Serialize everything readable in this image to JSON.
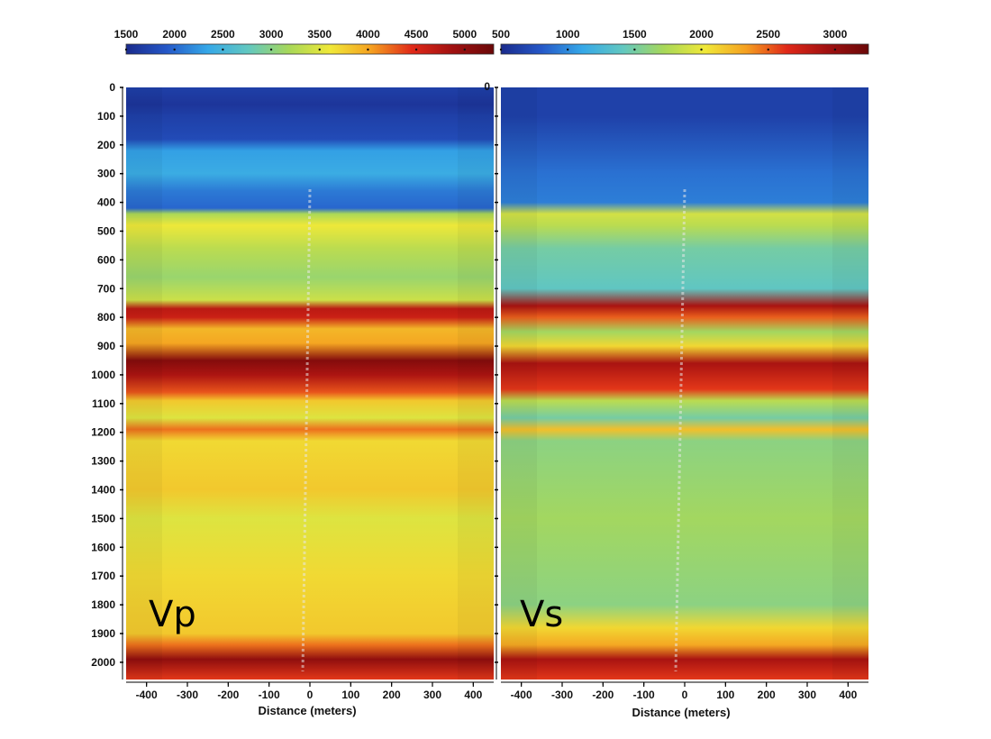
{
  "chart_data": [
    {
      "type": "heatmap",
      "panel_label": "Vp",
      "xlabel": "Distance (meters)",
      "ylabel": "",
      "xlim": [
        -450,
        450
      ],
      "ylim": [
        0,
        2060
      ],
      "x_ticks": [
        -400,
        -300,
        -200,
        -100,
        0,
        100,
        200,
        300,
        400
      ],
      "y_ticks": [
        0,
        100,
        200,
        300,
        400,
        500,
        600,
        700,
        800,
        900,
        1000,
        1100,
        1200,
        1300,
        1400,
        1500,
        1600,
        1700,
        1800,
        1900,
        2000
      ],
      "colorbar": {
        "min": 1500,
        "max": 5300,
        "ticks": [
          1500,
          2000,
          2500,
          3000,
          3500,
          4000,
          4500,
          5000
        ]
      },
      "depth_profile": [
        {
          "depth": 0,
          "value": 1700
        },
        {
          "depth": 60,
          "value": 1600
        },
        {
          "depth": 100,
          "value": 1700
        },
        {
          "depth": 180,
          "value": 1800
        },
        {
          "depth": 220,
          "value": 2300
        },
        {
          "depth": 300,
          "value": 2400
        },
        {
          "depth": 360,
          "value": 2100
        },
        {
          "depth": 420,
          "value": 2000
        },
        {
          "depth": 440,
          "value": 3200
        },
        {
          "depth": 480,
          "value": 3600
        },
        {
          "depth": 560,
          "value": 3300
        },
        {
          "depth": 660,
          "value": 3100
        },
        {
          "depth": 740,
          "value": 3400
        },
        {
          "depth": 770,
          "value": 4700
        },
        {
          "depth": 800,
          "value": 4600
        },
        {
          "depth": 840,
          "value": 3900
        },
        {
          "depth": 890,
          "value": 4000
        },
        {
          "depth": 950,
          "value": 5100
        },
        {
          "depth": 1000,
          "value": 4800
        },
        {
          "depth": 1060,
          "value": 4300
        },
        {
          "depth": 1090,
          "value": 3800
        },
        {
          "depth": 1150,
          "value": 3500
        },
        {
          "depth": 1190,
          "value": 4200
        },
        {
          "depth": 1230,
          "value": 3700
        },
        {
          "depth": 1400,
          "value": 3800
        },
        {
          "depth": 1500,
          "value": 3500
        },
        {
          "depth": 1700,
          "value": 3700
        },
        {
          "depth": 1900,
          "value": 3800
        },
        {
          "depth": 1940,
          "value": 4200
        },
        {
          "depth": 1990,
          "value": 5000
        },
        {
          "depth": 2060,
          "value": 4400
        }
      ]
    },
    {
      "type": "heatmap",
      "panel_label": "Vs",
      "xlabel": "Distance (meters)",
      "ylabel": "",
      "xlim": [
        -450,
        450
      ],
      "ylim": [
        0,
        2060
      ],
      "x_ticks": [
        -400,
        -300,
        -200,
        -100,
        0,
        100,
        200,
        300,
        400
      ],
      "y_ticks": [
        0
      ],
      "colorbar": {
        "min": 500,
        "max": 3250,
        "ticks": [
          500,
          1000,
          1500,
          2000,
          2500,
          3000
        ]
      },
      "depth_profile": [
        {
          "depth": 0,
          "value": 650
        },
        {
          "depth": 100,
          "value": 650
        },
        {
          "depth": 300,
          "value": 900
        },
        {
          "depth": 400,
          "value": 950
        },
        {
          "depth": 440,
          "value": 1900
        },
        {
          "depth": 480,
          "value": 1800
        },
        {
          "depth": 560,
          "value": 1500
        },
        {
          "depth": 700,
          "value": 1400
        },
        {
          "depth": 760,
          "value": 2900
        },
        {
          "depth": 800,
          "value": 2500
        },
        {
          "depth": 850,
          "value": 1700
        },
        {
          "depth": 900,
          "value": 2100
        },
        {
          "depth": 960,
          "value": 2900
        },
        {
          "depth": 1050,
          "value": 2600
        },
        {
          "depth": 1090,
          "value": 1800
        },
        {
          "depth": 1150,
          "value": 1500
        },
        {
          "depth": 1190,
          "value": 2200
        },
        {
          "depth": 1230,
          "value": 1600
        },
        {
          "depth": 1500,
          "value": 1700
        },
        {
          "depth": 1800,
          "value": 1600
        },
        {
          "depth": 1880,
          "value": 2100
        },
        {
          "depth": 1940,
          "value": 2300
        },
        {
          "depth": 1990,
          "value": 2900
        },
        {
          "depth": 2060,
          "value": 2600
        }
      ]
    }
  ],
  "colors": {
    "colormap": [
      "#1a2a8c",
      "#2558c8",
      "#35a8e8",
      "#62c8c0",
      "#a8d858",
      "#f0e838",
      "#f5a020",
      "#e02818",
      "#a01010",
      "#6a0808"
    ]
  }
}
